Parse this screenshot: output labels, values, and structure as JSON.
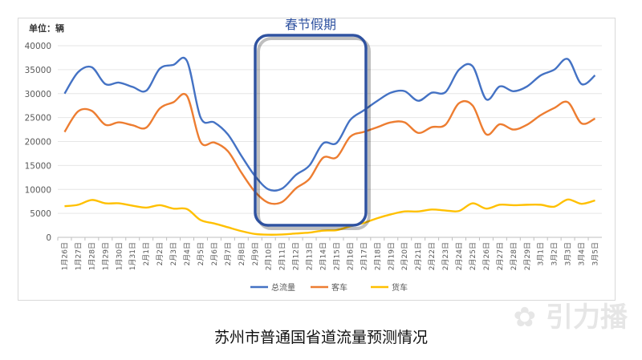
{
  "chart_data": {
    "type": "line",
    "title": "苏州市普通国省道流量预测情况",
    "unit_label": "单位：辆",
    "annotation": "春节假期",
    "ylim": [
      0,
      40000
    ],
    "yticks": [
      0,
      5000,
      10000,
      15000,
      20000,
      25000,
      30000,
      35000,
      40000
    ],
    "grid": true,
    "legend_position": "bottom",
    "categories": [
      "1月26日",
      "1月27日",
      "1月28日",
      "1月29日",
      "1月30日",
      "1月31日",
      "2月1日",
      "2月2日",
      "2月3日",
      "2月4日",
      "2月5日",
      "2月6日",
      "2月7日",
      "2月8日",
      "2月9日",
      "2月10日",
      "2月11日",
      "2月12日",
      "2月13日",
      "2月14日",
      "2月15日",
      "2月16日",
      "2月17日",
      "2月18日",
      "2月19日",
      "2月20日",
      "2月21日",
      "2月22日",
      "2月23日",
      "2月24日",
      "2月25日",
      "2月26日",
      "2月27日",
      "2月28日",
      "2月29日",
      "3月1日",
      "3月2日",
      "3月3日",
      "3月4日",
      "3月5日"
    ],
    "series": [
      {
        "name": "总流量",
        "color": "#4472c4",
        "values": [
          30000,
          34500,
          35500,
          32000,
          32300,
          31400,
          30600,
          35200,
          36000,
          36800,
          25000,
          24000,
          21500,
          17000,
          12800,
          10000,
          10200,
          13000,
          15000,
          19600,
          19700,
          24500,
          26500,
          28500,
          30200,
          30500,
          28500,
          30200,
          30300,
          35000,
          35700,
          28800,
          31500,
          30500,
          31500,
          33800,
          35000,
          37200,
          32000,
          33800
        ]
      },
      {
        "name": "客车",
        "color": "#ed7d31",
        "values": [
          22000,
          26300,
          26400,
          23500,
          24000,
          23400,
          22900,
          26900,
          28200,
          29500,
          19900,
          19800,
          18000,
          13500,
          9500,
          7200,
          7400,
          10200,
          12200,
          16600,
          16700,
          21000,
          22000,
          23000,
          24000,
          24000,
          21800,
          23000,
          23500,
          28000,
          27500,
          21500,
          23600,
          22500,
          23500,
          25500,
          27000,
          28200,
          23800,
          24800
        ]
      },
      {
        "name": "货车",
        "color": "#ffc000",
        "values": [
          6500,
          6800,
          7800,
          7100,
          7100,
          6600,
          6200,
          6700,
          6000,
          5900,
          3600,
          2900,
          2100,
          1300,
          700,
          550,
          600,
          800,
          1000,
          1400,
          1500,
          2300,
          3000,
          4000,
          4800,
          5400,
          5400,
          5800,
          5600,
          5500,
          7100,
          6000,
          6800,
          6700,
          6800,
          6800,
          6400,
          7900,
          7000,
          7700
        ]
      }
    ]
  },
  "watermark": "引力播"
}
